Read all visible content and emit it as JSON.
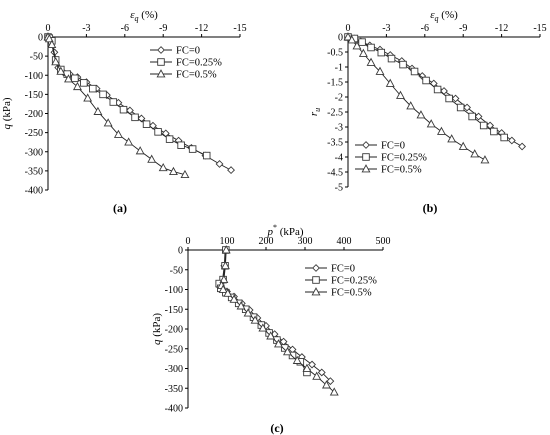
{
  "chart_data": [
    {
      "type": "line",
      "panel_label": "(a)",
      "xlabel_sym": "ε",
      "xlabel_sub": "q",
      "xlabel_unit": " (%)",
      "ylabel_sym": "q",
      "ylabel_unit": " (kPa)",
      "xlim": [
        0,
        -15
      ],
      "ylim": [
        -400,
        0
      ],
      "x_ticks": [
        0,
        -3,
        -6,
        -9,
        -12,
        -15
      ],
      "y_ticks": [
        0,
        -50,
        -100,
        -150,
        -200,
        -250,
        -300,
        -350,
        -400
      ],
      "legend_position": "top-right",
      "series": [
        {
          "name": "FC=0",
          "marker": "diamond",
          "x": [
            0,
            -0.1,
            -0.25,
            -0.5,
            -0.8,
            -1.2,
            -1.7,
            -2.3,
            -3.0,
            -3.8,
            -4.6,
            -5.5,
            -6.4,
            -7.3,
            -8.2,
            -9.2,
            -10.2,
            -11.2,
            -12.3,
            -13.4,
            -14.3
          ],
          "y": [
            0,
            -3,
            -8,
            -40,
            -80,
            -92,
            -97,
            -105,
            -118,
            -135,
            -152,
            -172,
            -192,
            -213,
            -232,
            -252,
            -271,
            -290,
            -310,
            -332,
            -348
          ]
        },
        {
          "name": "FC=0.25%",
          "marker": "square",
          "x": [
            0,
            -0.1,
            -0.3,
            -0.6,
            -1.0,
            -1.5,
            -2.1,
            -2.8,
            -3.5,
            -4.3,
            -5.1,
            -5.9,
            -6.8,
            -7.7,
            -8.6,
            -9.5,
            -10.4,
            -11.3,
            -12.4
          ],
          "y": [
            0,
            -3,
            -10,
            -60,
            -85,
            -97,
            -108,
            -120,
            -135,
            -150,
            -170,
            -190,
            -210,
            -228,
            -248,
            -267,
            -283,
            -293,
            -310
          ]
        },
        {
          "name": "FC=0.5%",
          "marker": "triangle",
          "x": [
            0,
            -0.1,
            -0.3,
            -0.6,
            -1.0,
            -1.6,
            -2.3,
            -3.1,
            -3.9,
            -4.7,
            -5.5,
            -6.3,
            -7.2,
            -8.1,
            -9.0,
            -9.8,
            -10.7
          ],
          "y": [
            0,
            -5,
            -20,
            -65,
            -90,
            -110,
            -130,
            -160,
            -195,
            -225,
            -255,
            -275,
            -298,
            -320,
            -342,
            -352,
            -360
          ]
        }
      ]
    },
    {
      "type": "line",
      "panel_label": "(b)",
      "xlabel_sym": "ε",
      "xlabel_sub": "q",
      "xlabel_unit": " (%)",
      "ylabel_sym": "r",
      "ylabel_sub": "u",
      "xlim": [
        0,
        -15
      ],
      "ylim": [
        -5,
        0
      ],
      "x_ticks": [
        0,
        -3,
        -6,
        -9,
        -12,
        -15
      ],
      "y_ticks": [
        0,
        -0.5,
        -1,
        -1.5,
        -2,
        -2.5,
        -3,
        -3.5,
        -4,
        -4.5,
        -5
      ],
      "legend_position": "bottom-left",
      "series": [
        {
          "name": "FC=0",
          "marker": "diamond",
          "x": [
            0,
            -0.5,
            -1.0,
            -1.7,
            -2.5,
            -3.3,
            -4.2,
            -5.0,
            -5.8,
            -6.7,
            -7.5,
            -8.4,
            -9.3,
            -10.2,
            -11.1,
            -12.0,
            -12.8,
            -13.6
          ],
          "y": [
            0,
            -0.05,
            -0.15,
            -0.28,
            -0.42,
            -0.6,
            -0.8,
            -1.05,
            -1.3,
            -1.55,
            -1.8,
            -2.05,
            -2.35,
            -2.65,
            -2.95,
            -3.2,
            -3.45,
            -3.65
          ]
        },
        {
          "name": "FC=0.25%",
          "marker": "square",
          "x": [
            0,
            -0.5,
            -1.1,
            -1.8,
            -2.6,
            -3.4,
            -4.3,
            -5.2,
            -6.1,
            -7.0,
            -7.9,
            -8.8,
            -9.7,
            -10.6,
            -11.4,
            -12.2
          ],
          "y": [
            0,
            -0.05,
            -0.17,
            -0.35,
            -0.52,
            -0.72,
            -0.92,
            -1.15,
            -1.45,
            -1.75,
            -2.05,
            -2.35,
            -2.65,
            -2.95,
            -3.15,
            -3.35
          ]
        },
        {
          "name": "FC=0.5%",
          "marker": "triangle",
          "x": [
            0,
            -0.3,
            -0.7,
            -1.2,
            -1.8,
            -2.5,
            -3.3,
            -4.1,
            -4.9,
            -5.7,
            -6.5,
            -7.3,
            -8.1,
            -9.0,
            -9.9,
            -10.7
          ],
          "y": [
            0,
            -0.1,
            -0.3,
            -0.55,
            -0.85,
            -1.15,
            -1.55,
            -1.95,
            -2.3,
            -2.6,
            -2.9,
            -3.15,
            -3.4,
            -3.65,
            -3.9,
            -4.1
          ]
        }
      ]
    },
    {
      "type": "line",
      "panel_label": "(c)",
      "xlabel_sym": "p",
      "xlabel_sup": "*",
      "xlabel_unit": " (kPa)",
      "ylabel_sym": "q",
      "ylabel_unit": " (kPa)",
      "xlim": [
        0,
        500
      ],
      "ylim": [
        -400,
        0
      ],
      "x_ticks": [
        0,
        100,
        200,
        300,
        400,
        500
      ],
      "y_ticks": [
        0,
        -50,
        -100,
        -150,
        -200,
        -250,
        -300,
        -350,
        -400
      ],
      "legend_position": "top-right",
      "series": [
        {
          "name": "FC=0",
          "marker": "diamond",
          "x": [
            95,
            93,
            88,
            80,
            85,
            100,
            118,
            138,
            158,
            178,
            200,
            222,
            245,
            268,
            292,
            318,
            343,
            365
          ],
          "y": [
            0,
            -40,
            -80,
            -92,
            -97,
            -105,
            -118,
            -135,
            -152,
            -172,
            -192,
            -213,
            -232,
            -252,
            -271,
            -290,
            -310,
            -332
          ]
        },
        {
          "name": "FC=0.25%",
          "marker": "square",
          "x": [
            97,
            95,
            90,
            80,
            84,
            97,
            112,
            130,
            148,
            168,
            188,
            208,
            228,
            248,
            268,
            288,
            305
          ],
          "y": [
            0,
            -40,
            -75,
            -85,
            -97,
            -108,
            -120,
            -135,
            -150,
            -170,
            -190,
            -210,
            -228,
            -248,
            -267,
            -283,
            -310
          ]
        },
        {
          "name": "FC=0.5%",
          "marker": "triangle",
          "x": [
            98,
            96,
            92,
            86,
            90,
            102,
            118,
            136,
            154,
            172,
            192,
            212,
            232,
            255,
            280,
            305,
            330,
            355,
            375
          ],
          "y": [
            0,
            -40,
            -75,
            -90,
            -100,
            -110,
            -125,
            -142,
            -160,
            -178,
            -198,
            -218,
            -238,
            -258,
            -280,
            -300,
            -320,
            -342,
            -360
          ]
        }
      ]
    }
  ]
}
